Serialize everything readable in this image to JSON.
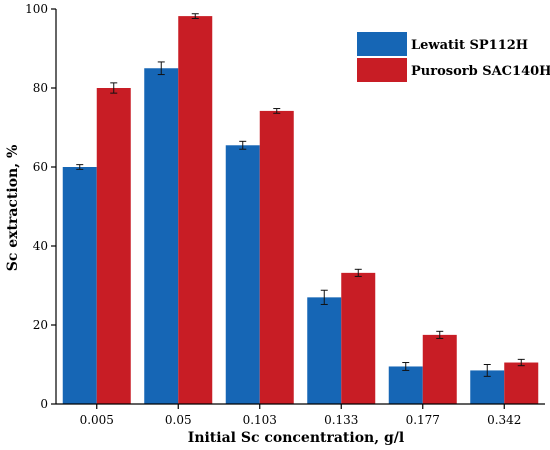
{
  "chart_data": {
    "type": "bar",
    "title": "",
    "xlabel": "Initial Sc concentration, g/l",
    "ylabel": "Sc extraction, %",
    "ylim": [
      0,
      100
    ],
    "yticks": [
      "0",
      "20",
      "40",
      "60",
      "80",
      "100"
    ],
    "categories": [
      "0.005",
      "0.05",
      "0.103",
      "0.133",
      "0.177",
      "0.342"
    ],
    "series": [
      {
        "name": "Lewatit SP112H",
        "color": "#1666b5",
        "values": [
          60.0,
          85.0,
          65.5,
          27.0,
          9.5,
          8.5
        ],
        "errors": [
          0.6,
          1.6,
          1.0,
          1.8,
          1.0,
          1.5
        ]
      },
      {
        "name": "Purosorb SAC140H",
        "color": "#c81d25",
        "values": [
          80.0,
          98.2,
          74.2,
          33.2,
          17.5,
          10.5
        ],
        "errors": [
          1.3,
          0.6,
          0.6,
          0.9,
          0.9,
          0.8
        ]
      }
    ],
    "legend": "top-right",
    "grid": false,
    "error_bars": true
  }
}
